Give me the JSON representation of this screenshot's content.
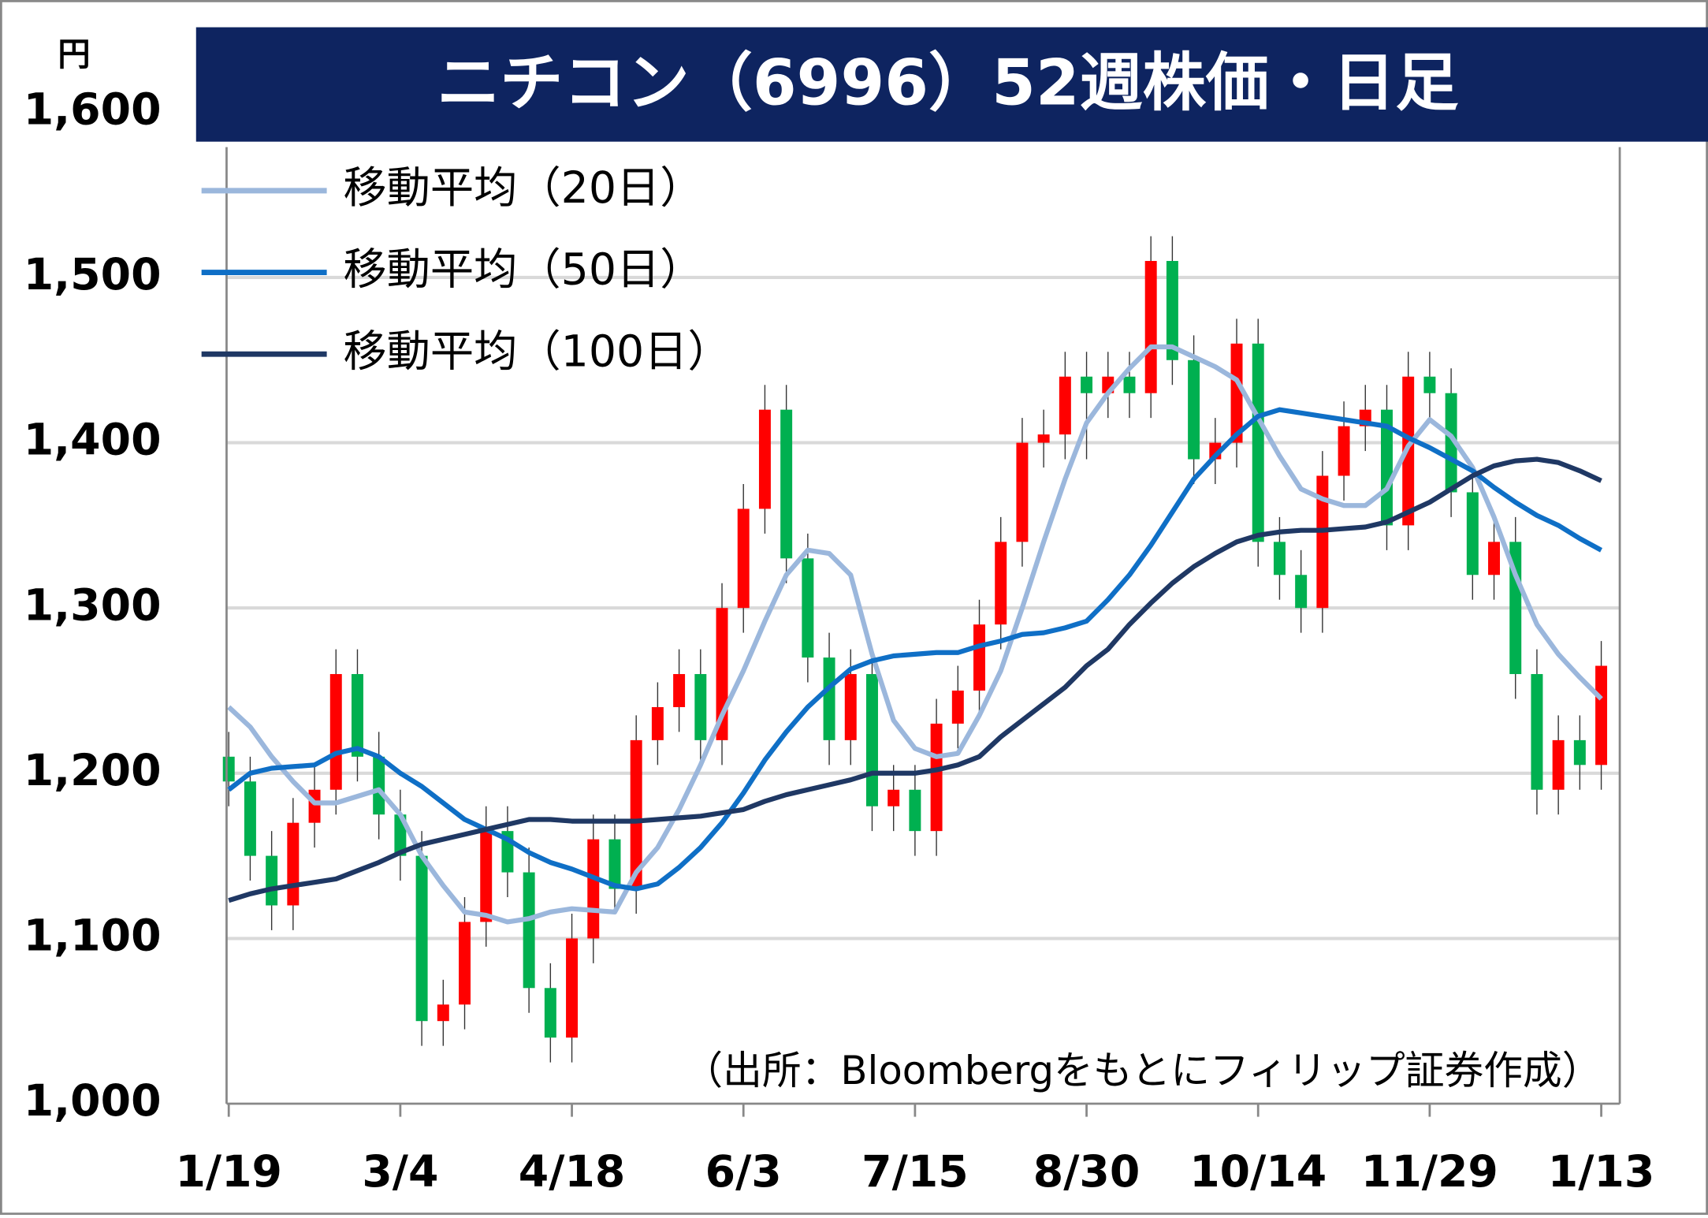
{
  "chart_data": {
    "type": "candlestick",
    "title": "ニチコン（6996）52週株価・日足",
    "y_unit": "円",
    "source": "（出所：Bloombergをもとにフィリップ証券作成）",
    "categories": [
      "1/19",
      null,
      null,
      null,
      null,
      null,
      null,
      null,
      "3/4",
      null,
      null,
      null,
      null,
      null,
      null,
      null,
      "4/18",
      null,
      null,
      null,
      null,
      null,
      null,
      null,
      "6/3",
      null,
      null,
      null,
      null,
      null,
      null,
      null,
      "7/15",
      null,
      null,
      null,
      null,
      null,
      null,
      null,
      "8/30",
      null,
      null,
      null,
      null,
      null,
      null,
      null,
      "10/14",
      null,
      null,
      null,
      null,
      null,
      null,
      null,
      "11/29",
      null,
      null,
      null,
      null,
      null,
      null,
      null,
      "1/13"
    ],
    "candles": {
      "up_color": "#ff0000",
      "down_color": "#00b050",
      "open": [
        1210,
        1195,
        1150,
        1120,
        1170,
        1190,
        1260,
        1210,
        1175,
        1150,
        1050,
        1060,
        1110,
        1165,
        1140,
        1070,
        1040,
        1100,
        1160,
        1130,
        1220,
        1240,
        1260,
        1220,
        1300,
        1360,
        1420,
        1330,
        1270,
        1220,
        1260,
        1180,
        1190,
        1165,
        1230,
        1250,
        1290,
        1340,
        1400,
        1405,
        1440,
        1430,
        1440,
        1430,
        1510,
        1450,
        1390,
        1400,
        1460,
        1340,
        1320,
        1300,
        1380,
        1410,
        1420,
        1350,
        1440,
        1430,
        1370,
        1320,
        1340,
        1260,
        1190,
        1220,
        1205
      ],
      "high": [
        1225,
        1210,
        1165,
        1185,
        1205,
        1275,
        1275,
        1225,
        1190,
        1165,
        1075,
        1125,
        1180,
        1180,
        1155,
        1085,
        1115,
        1175,
        1175,
        1235,
        1255,
        1275,
        1275,
        1315,
        1375,
        1435,
        1435,
        1345,
        1285,
        1275,
        1275,
        1205,
        1205,
        1245,
        1265,
        1305,
        1355,
        1415,
        1420,
        1455,
        1455,
        1455,
        1455,
        1525,
        1525,
        1465,
        1415,
        1475,
        1475,
        1355,
        1335,
        1395,
        1425,
        1435,
        1435,
        1455,
        1455,
        1445,
        1385,
        1355,
        1355,
        1275,
        1235,
        1235,
        1280
      ],
      "low": [
        1180,
        1135,
        1105,
        1105,
        1155,
        1175,
        1195,
        1160,
        1135,
        1035,
        1035,
        1045,
        1095,
        1125,
        1055,
        1025,
        1025,
        1085,
        1115,
        1115,
        1205,
        1225,
        1205,
        1205,
        1285,
        1345,
        1315,
        1255,
        1205,
        1205,
        1165,
        1165,
        1150,
        1150,
        1215,
        1235,
        1275,
        1325,
        1385,
        1390,
        1390,
        1415,
        1415,
        1415,
        1435,
        1375,
        1375,
        1385,
        1325,
        1305,
        1285,
        1285,
        1365,
        1395,
        1335,
        1335,
        1415,
        1355,
        1305,
        1305,
        1245,
        1175,
        1175,
        1190,
        1190
      ],
      "close": [
        1195,
        1150,
        1120,
        1170,
        1190,
        1260,
        1210,
        1175,
        1150,
        1050,
        1060,
        1110,
        1165,
        1140,
        1070,
        1040,
        1100,
        1160,
        1130,
        1220,
        1240,
        1260,
        1220,
        1300,
        1360,
        1420,
        1330,
        1270,
        1220,
        1260,
        1180,
        1190,
        1165,
        1230,
        1250,
        1290,
        1340,
        1400,
        1405,
        1440,
        1430,
        1440,
        1430,
        1510,
        1450,
        1390,
        1400,
        1460,
        1340,
        1320,
        1300,
        1380,
        1410,
        1420,
        1350,
        1440,
        1430,
        1370,
        1320,
        1340,
        1260,
        1190,
        1220,
        1205,
        1265
      ]
    },
    "lines": [
      {
        "name": "移動平均（20日）",
        "color": "#9bb7dc",
        "values": [
          1240,
          1228,
          1210,
          1195,
          1182,
          1182,
          1186,
          1190,
          1175,
          1150,
          1132,
          1116,
          1114,
          1110,
          1112,
          1116,
          1118,
          1117,
          1116,
          1140,
          1155,
          1178,
          1205,
          1235,
          1262,
          1292,
          1320,
          1335,
          1333,
          1320,
          1272,
          1232,
          1215,
          1210,
          1212,
          1235,
          1262,
          1300,
          1340,
          1378,
          1412,
          1430,
          1445,
          1458,
          1458,
          1452,
          1446,
          1438,
          1415,
          1392,
          1372,
          1366,
          1362,
          1362,
          1372,
          1398,
          1414,
          1404,
          1385,
          1355,
          1320,
          1290,
          1272,
          1258,
          1245
        ]
      },
      {
        "name": "移動平均（50日）",
        "color": "#0f6fc6",
        "values": [
          1190,
          1200,
          1203,
          1204,
          1205,
          1212,
          1215,
          1210,
          1200,
          1192,
          1182,
          1172,
          1166,
          1160,
          1152,
          1146,
          1142,
          1137,
          1132,
          1130,
          1133,
          1143,
          1155,
          1170,
          1188,
          1208,
          1225,
          1240,
          1252,
          1263,
          1268,
          1271,
          1272,
          1273,
          1273,
          1277,
          1280,
          1284,
          1285,
          1288,
          1292,
          1305,
          1320,
          1338,
          1358,
          1378,
          1392,
          1405,
          1416,
          1420,
          1418,
          1416,
          1414,
          1412,
          1410,
          1403,
          1397,
          1390,
          1383,
          1373,
          1364,
          1356,
          1350,
          1342,
          1335
        ]
      },
      {
        "name": "移動平均（100日）",
        "color": "#1f3864",
        "values": [
          1123,
          1127,
          1130,
          1132,
          1134,
          1136,
          1141,
          1146,
          1152,
          1157,
          1160,
          1163,
          1166,
          1169,
          1172,
          1172,
          1171,
          1171,
          1171,
          1171,
          1172,
          1173,
          1174,
          1176,
          1178,
          1183,
          1187,
          1190,
          1193,
          1196,
          1200,
          1200,
          1200,
          1202,
          1205,
          1210,
          1222,
          1232,
          1242,
          1252,
          1265,
          1275,
          1290,
          1303,
          1315,
          1325,
          1333,
          1340,
          1344,
          1346,
          1347,
          1347,
          1348,
          1349,
          1352,
          1358,
          1364,
          1372,
          1380,
          1386,
          1389,
          1390,
          1388,
          1383,
          1377
        ]
      }
    ],
    "ylim": [
      1000,
      1600
    ],
    "yticks": [
      {
        "value": 1000,
        "label": "1,000"
      },
      {
        "value": 1100,
        "label": "1,100"
      },
      {
        "value": 1200,
        "label": "1,200"
      },
      {
        "value": 1300,
        "label": "1,300"
      },
      {
        "value": 1400,
        "label": "1,400"
      },
      {
        "value": 1500,
        "label": "1,500"
      },
      {
        "value": 1600,
        "label": "1,600"
      }
    ],
    "grid": true,
    "legend": "top-left"
  }
}
